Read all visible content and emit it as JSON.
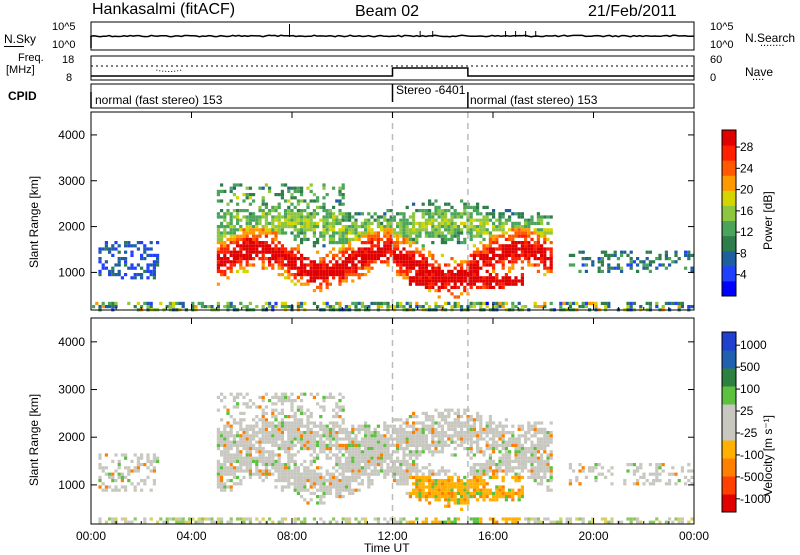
{
  "header": {
    "station": "Hankasalmi (fitACF)",
    "beam": "Beam 02",
    "date": "21/Feb/2011"
  },
  "top_strip": {
    "left_label": "N.Sky",
    "left_ticks": [
      "10^5",
      "10^0"
    ],
    "right_ticks": [
      "10^5",
      "10^0"
    ],
    "right_label": "N.Search",
    "right_dots": "........"
  },
  "freq_strip": {
    "left_label_1": "Freq.",
    "left_label_2": "[MHz]",
    "left_ticks": [
      "18",
      "8"
    ],
    "right_ticks": [
      "60",
      "0"
    ],
    "right_label": "Nave",
    "right_dots": "...."
  },
  "cpid": {
    "label": "CPID",
    "modes": [
      {
        "text": "normal (fast stereo) 153",
        "start": 0,
        "end": 12
      },
      {
        "text": "Stereo -6401",
        "start": 12,
        "end": 15
      },
      {
        "text": "normal (fast stereo) 153",
        "start": 15,
        "end": 24
      }
    ]
  },
  "chart_data": [
    {
      "type": "heatmap",
      "title": "",
      "ylabel": "Slant Range [km]",
      "xlabel": "",
      "x_ticks": [
        "00:00",
        "04:00",
        "08:00",
        "12:00",
        "16:00",
        "20:00",
        "00:00"
      ],
      "xlim_hours": [
        0,
        24
      ],
      "y_ticks": [
        1000,
        2000,
        3000,
        4000
      ],
      "ylim": [
        180,
        4500
      ],
      "colorbar": {
        "label": "Power [dB]",
        "ticks": [
          "4",
          "8",
          "12",
          "16",
          "20",
          "24",
          "28"
        ],
        "colors": [
          "#0000ff",
          "#2040ff",
          "#1f5fa0",
          "#2e7d4a",
          "#4aa55a",
          "#8dc63f",
          "#d4d400",
          "#ff9900",
          "#ff5a00",
          "#ff2000",
          "#e00000"
        ]
      }
    },
    {
      "type": "heatmap",
      "title": "",
      "ylabel": "Slant Range [km]",
      "xlabel": "Time UT",
      "x_ticks": [
        "00:00",
        "04:00",
        "08:00",
        "12:00",
        "16:00",
        "20:00",
        "00:00"
      ],
      "xlim_hours": [
        0,
        24
      ],
      "y_ticks": [
        1000,
        2000,
        3000,
        4000
      ],
      "ylim": [
        180,
        4500
      ],
      "colorbar": {
        "label": "Velocity [m s⁻¹]",
        "ticks": [
          "1000",
          "500",
          "100",
          "25",
          "-25",
          "-100",
          "-500",
          "-1000"
        ],
        "colors": [
          "#2040d0",
          "#2060b0",
          "#2e8040",
          "#5cc040",
          "#c8c8c0",
          "#c8c8c0",
          "#ffb000",
          "#ff8000",
          "#ff4000",
          "#e00000"
        ]
      }
    }
  ]
}
